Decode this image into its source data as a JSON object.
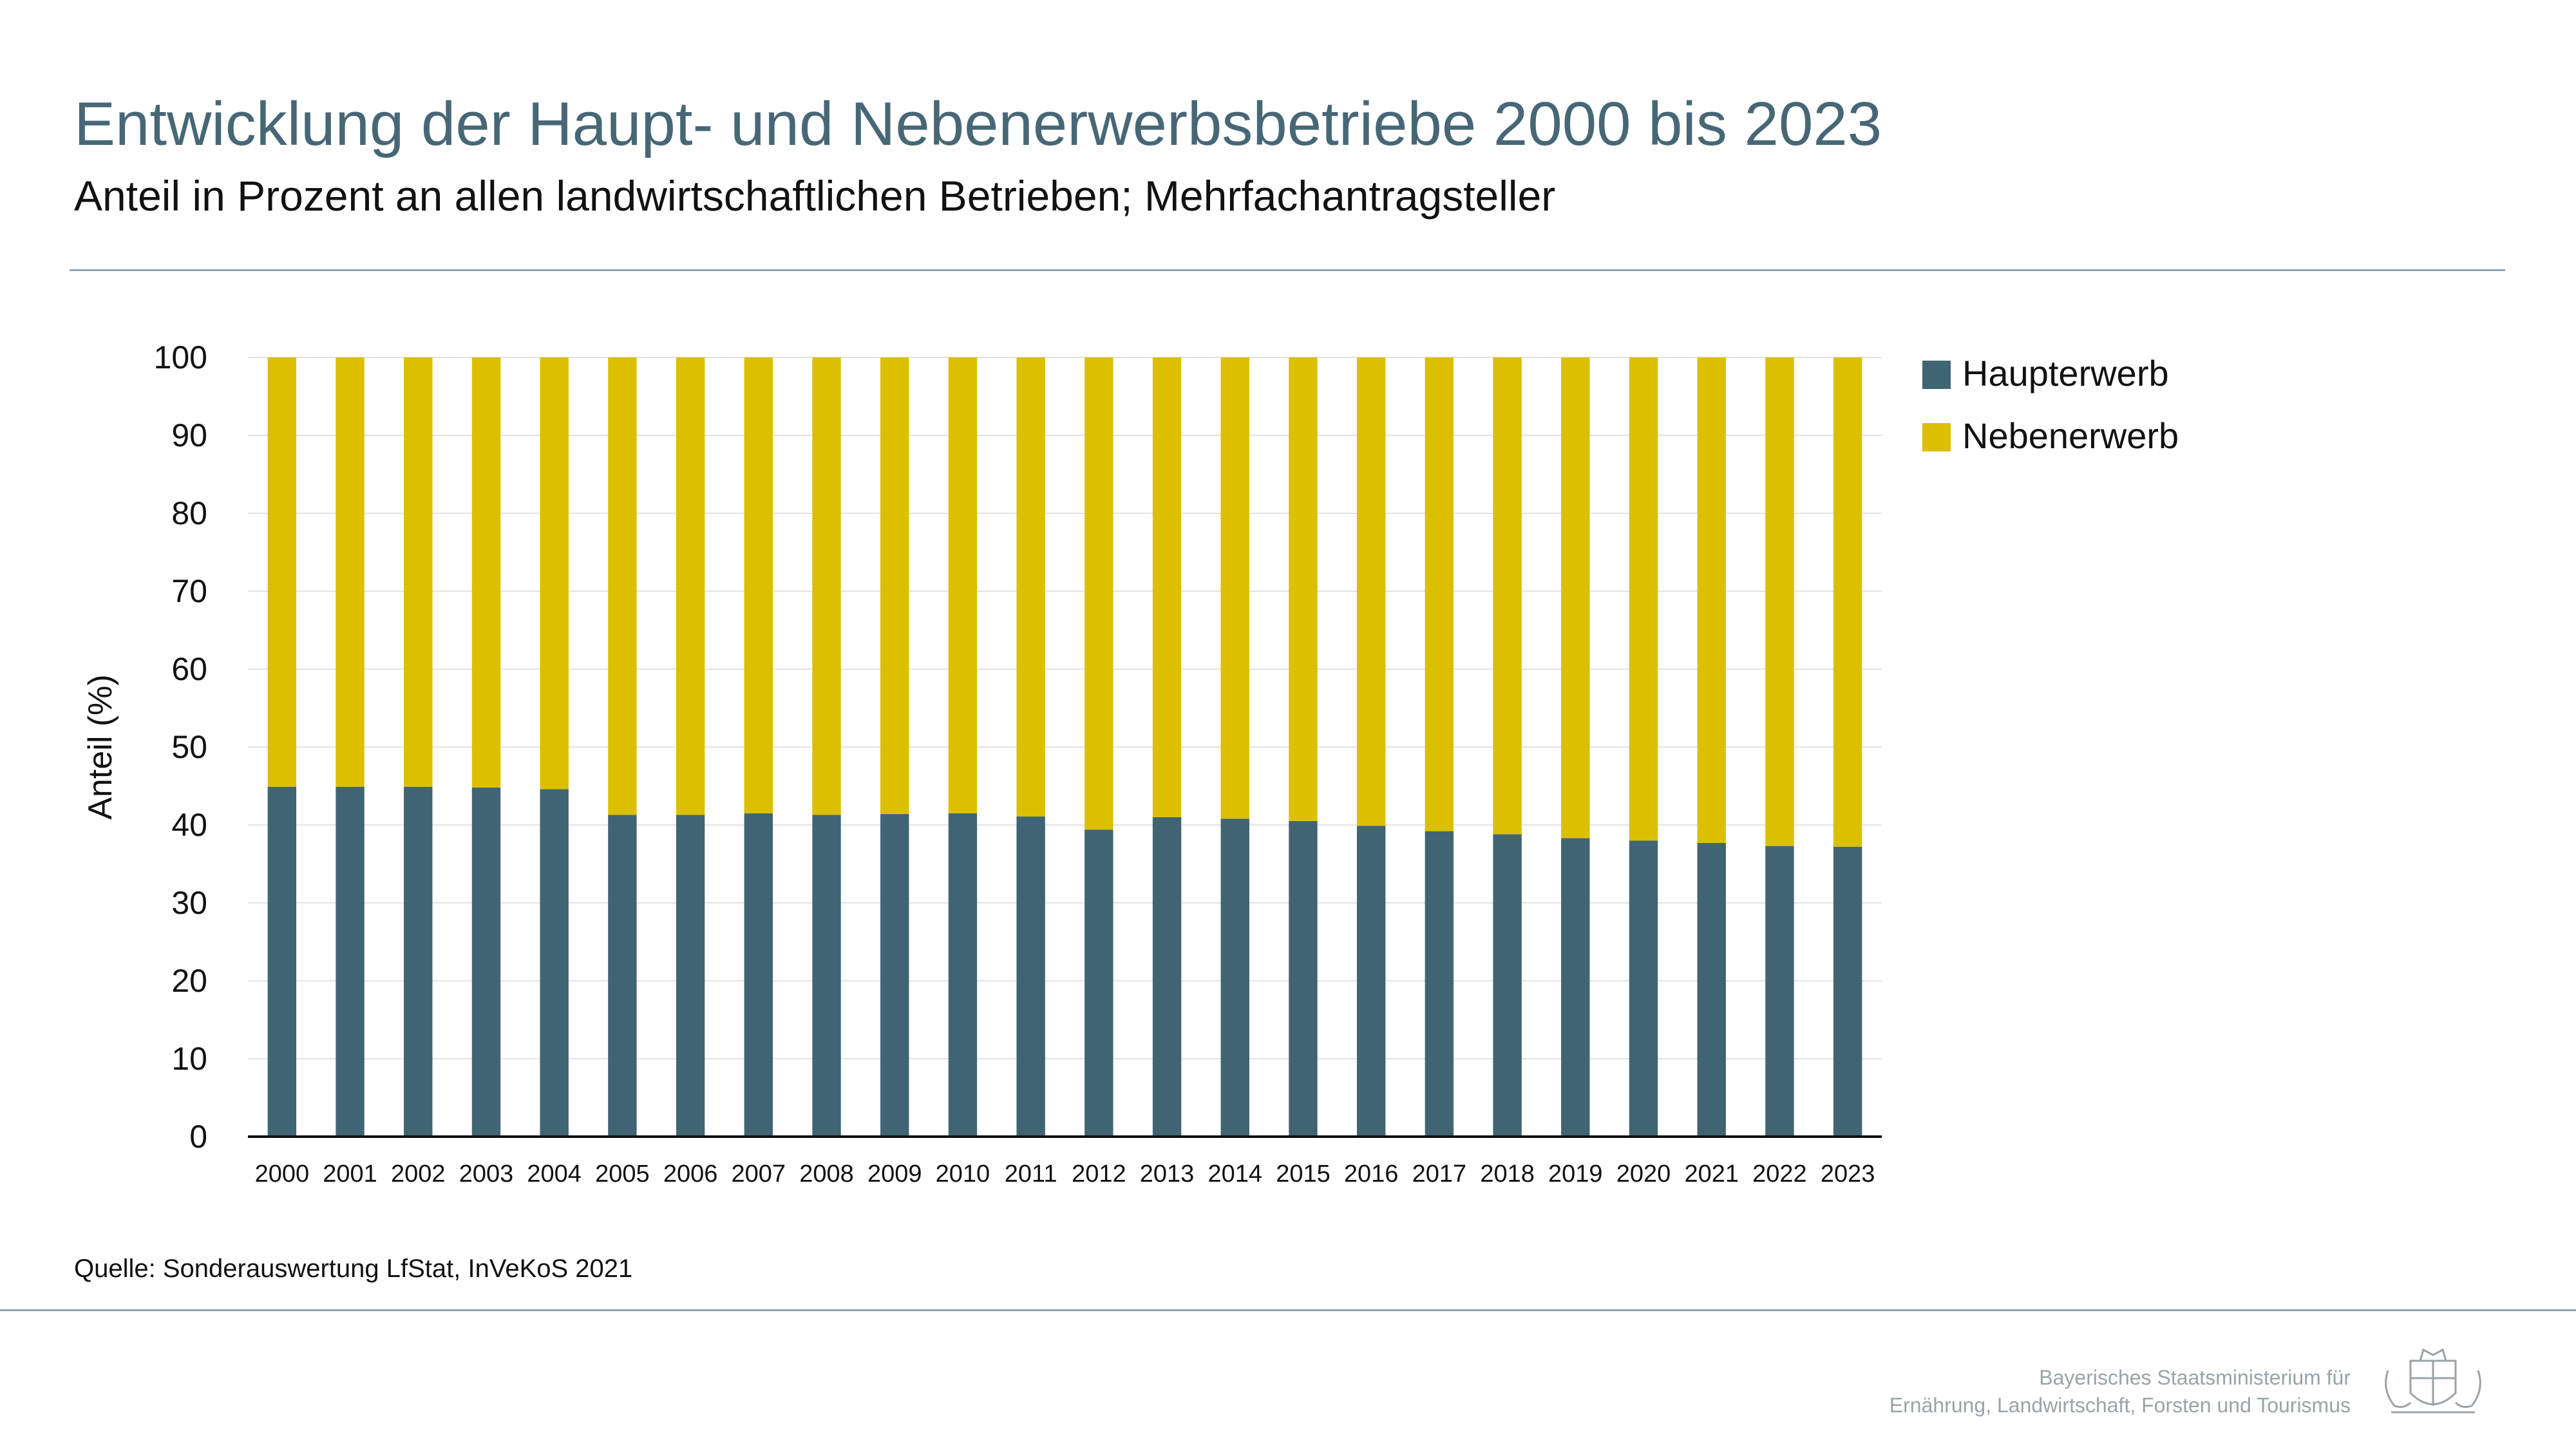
{
  "header": {
    "title": "Entwicklung der Haupt- und Nebenerwerbsbetriebe 2000 bis 2023",
    "subtitle": "Anteil in Prozent an allen landwirtschaftlichen Betrieben; Mehrfachantragsteller"
  },
  "chart_data": {
    "type": "bar",
    "stacked": true,
    "categories": [
      "2000",
      "2001",
      "2002",
      "2003",
      "2004",
      "2005",
      "2006",
      "2007",
      "2008",
      "2009",
      "2010",
      "2011",
      "2012",
      "2013",
      "2014",
      "2015",
      "2016",
      "2017",
      "2018",
      "2019",
      "2020",
      "2021",
      "2022",
      "2023"
    ],
    "series": [
      {
        "name": "Haupterwerb",
        "color": "#416474",
        "values": [
          44.9,
          44.9,
          44.9,
          44.8,
          44.6,
          41.3,
          41.3,
          41.5,
          41.3,
          41.4,
          41.5,
          41.1,
          39.4,
          41.0,
          40.8,
          40.5,
          39.9,
          39.2,
          38.8,
          38.3,
          38.0,
          37.7,
          37.3,
          37.2
        ]
      },
      {
        "name": "Nebenerwerb",
        "color": "#dbbf00",
        "values": [
          55.1,
          55.1,
          55.1,
          55.2,
          55.4,
          58.7,
          58.7,
          58.5,
          58.7,
          58.6,
          58.5,
          58.9,
          60.6,
          59.0,
          59.2,
          59.5,
          60.1,
          60.8,
          61.2,
          61.7,
          62.0,
          62.3,
          62.7,
          62.8
        ]
      }
    ],
    "ylabel": "Anteil (%)",
    "ylim": [
      0,
      100
    ],
    "yticks": [
      "0",
      "10",
      "20",
      "30",
      "40",
      "50",
      "60",
      "70",
      "80",
      "90",
      "100"
    ],
    "grid": true,
    "legend": "top-right"
  },
  "footer": {
    "source": "Quelle: Sonderauswertung LfStat, InVeKoS 2021",
    "ministry_line1": "Bayerisches Staatsministerium für",
    "ministry_line2": "Ernährung, Landwirtschaft, Forsten und Tourismus",
    "crest_icon": "bavarian-coat-of-arms-icon"
  }
}
